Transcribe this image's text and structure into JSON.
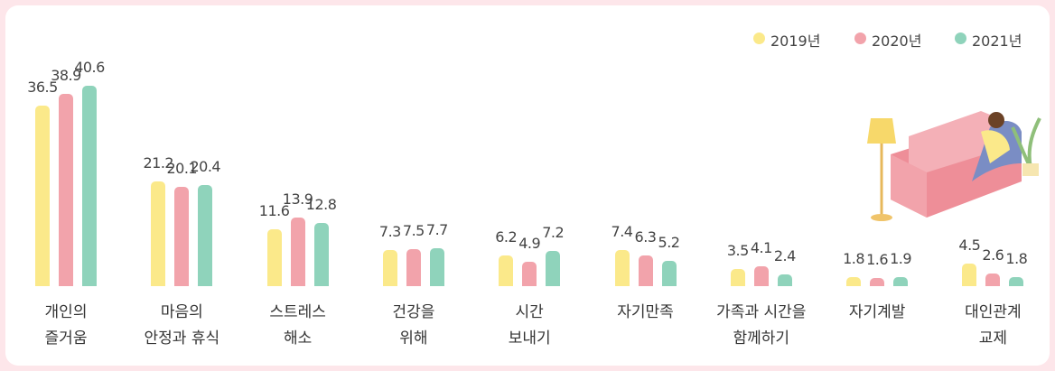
{
  "chart_data": {
    "type": "bar",
    "categories": [
      "개인의\n즐거움",
      "마음의\n안정과 휴식",
      "스트레스\n해소",
      "건강을\n위해",
      "시간\n보내기",
      "자기만족",
      "가족과 시간을\n함께하기",
      "자기계발",
      "대인관계\n교제"
    ],
    "series": [
      {
        "name": "2019년",
        "color": "#fbe98a",
        "values": [
          36.5,
          21.2,
          11.6,
          7.3,
          6.2,
          7.4,
          3.5,
          1.8,
          4.5
        ]
      },
      {
        "name": "2020년",
        "color": "#f2a3ab",
        "values": [
          38.9,
          20.1,
          13.9,
          7.5,
          4.9,
          6.3,
          4.1,
          1.6,
          2.6
        ]
      },
      {
        "name": "2021년",
        "color": "#8fd3bb",
        "values": [
          40.6,
          20.4,
          12.8,
          7.7,
          7.2,
          5.2,
          2.4,
          1.9,
          1.8
        ]
      }
    ],
    "legend": "top-right"
  }
}
